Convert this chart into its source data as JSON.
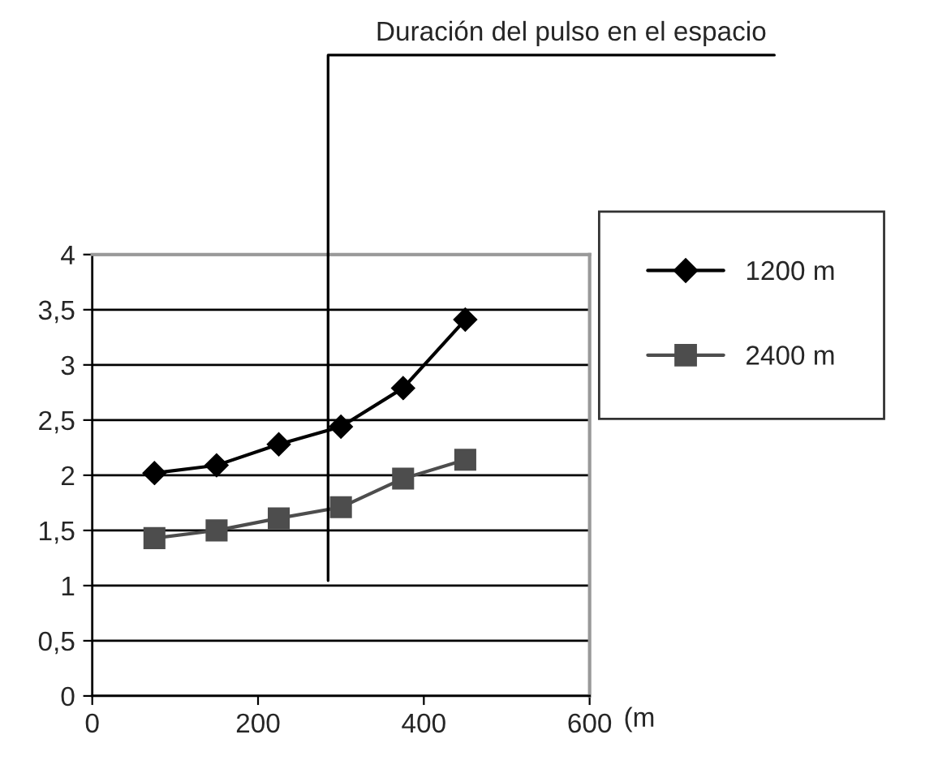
{
  "chart_data": {
    "type": "line",
    "annotations": [
      "Duración del pulso en el espacio"
    ],
    "xlabel": "(m",
    "x": [
      75,
      150,
      225,
      300,
      375,
      450
    ],
    "series": [
      {
        "name": "1200 m",
        "color": "#000000",
        "marker": "diamond",
        "values": [
          2.02,
          2.09,
          2.28,
          2.44,
          2.79,
          3.41
        ]
      },
      {
        "name": "2400 m",
        "color": "#4d4d4d",
        "marker": "square",
        "values": [
          1.43,
          1.5,
          1.61,
          1.71,
          1.97,
          2.14
        ]
      }
    ],
    "xlim": [
      0,
      600
    ],
    "xticks": [
      0,
      200,
      400,
      600
    ],
    "ylim": [
      0,
      4
    ],
    "yticks": [
      0,
      {
        "value": 0.5,
        "label": "0,5"
      },
      1,
      {
        "value": 1.5,
        "label": "1,5"
      },
      2,
      {
        "value": 2.5,
        "label": "2,5"
      },
      3,
      {
        "value": 3.5,
        "label": "3,5"
      },
      4
    ],
    "grid": "y",
    "legend": "right",
    "line_style": "solid"
  }
}
